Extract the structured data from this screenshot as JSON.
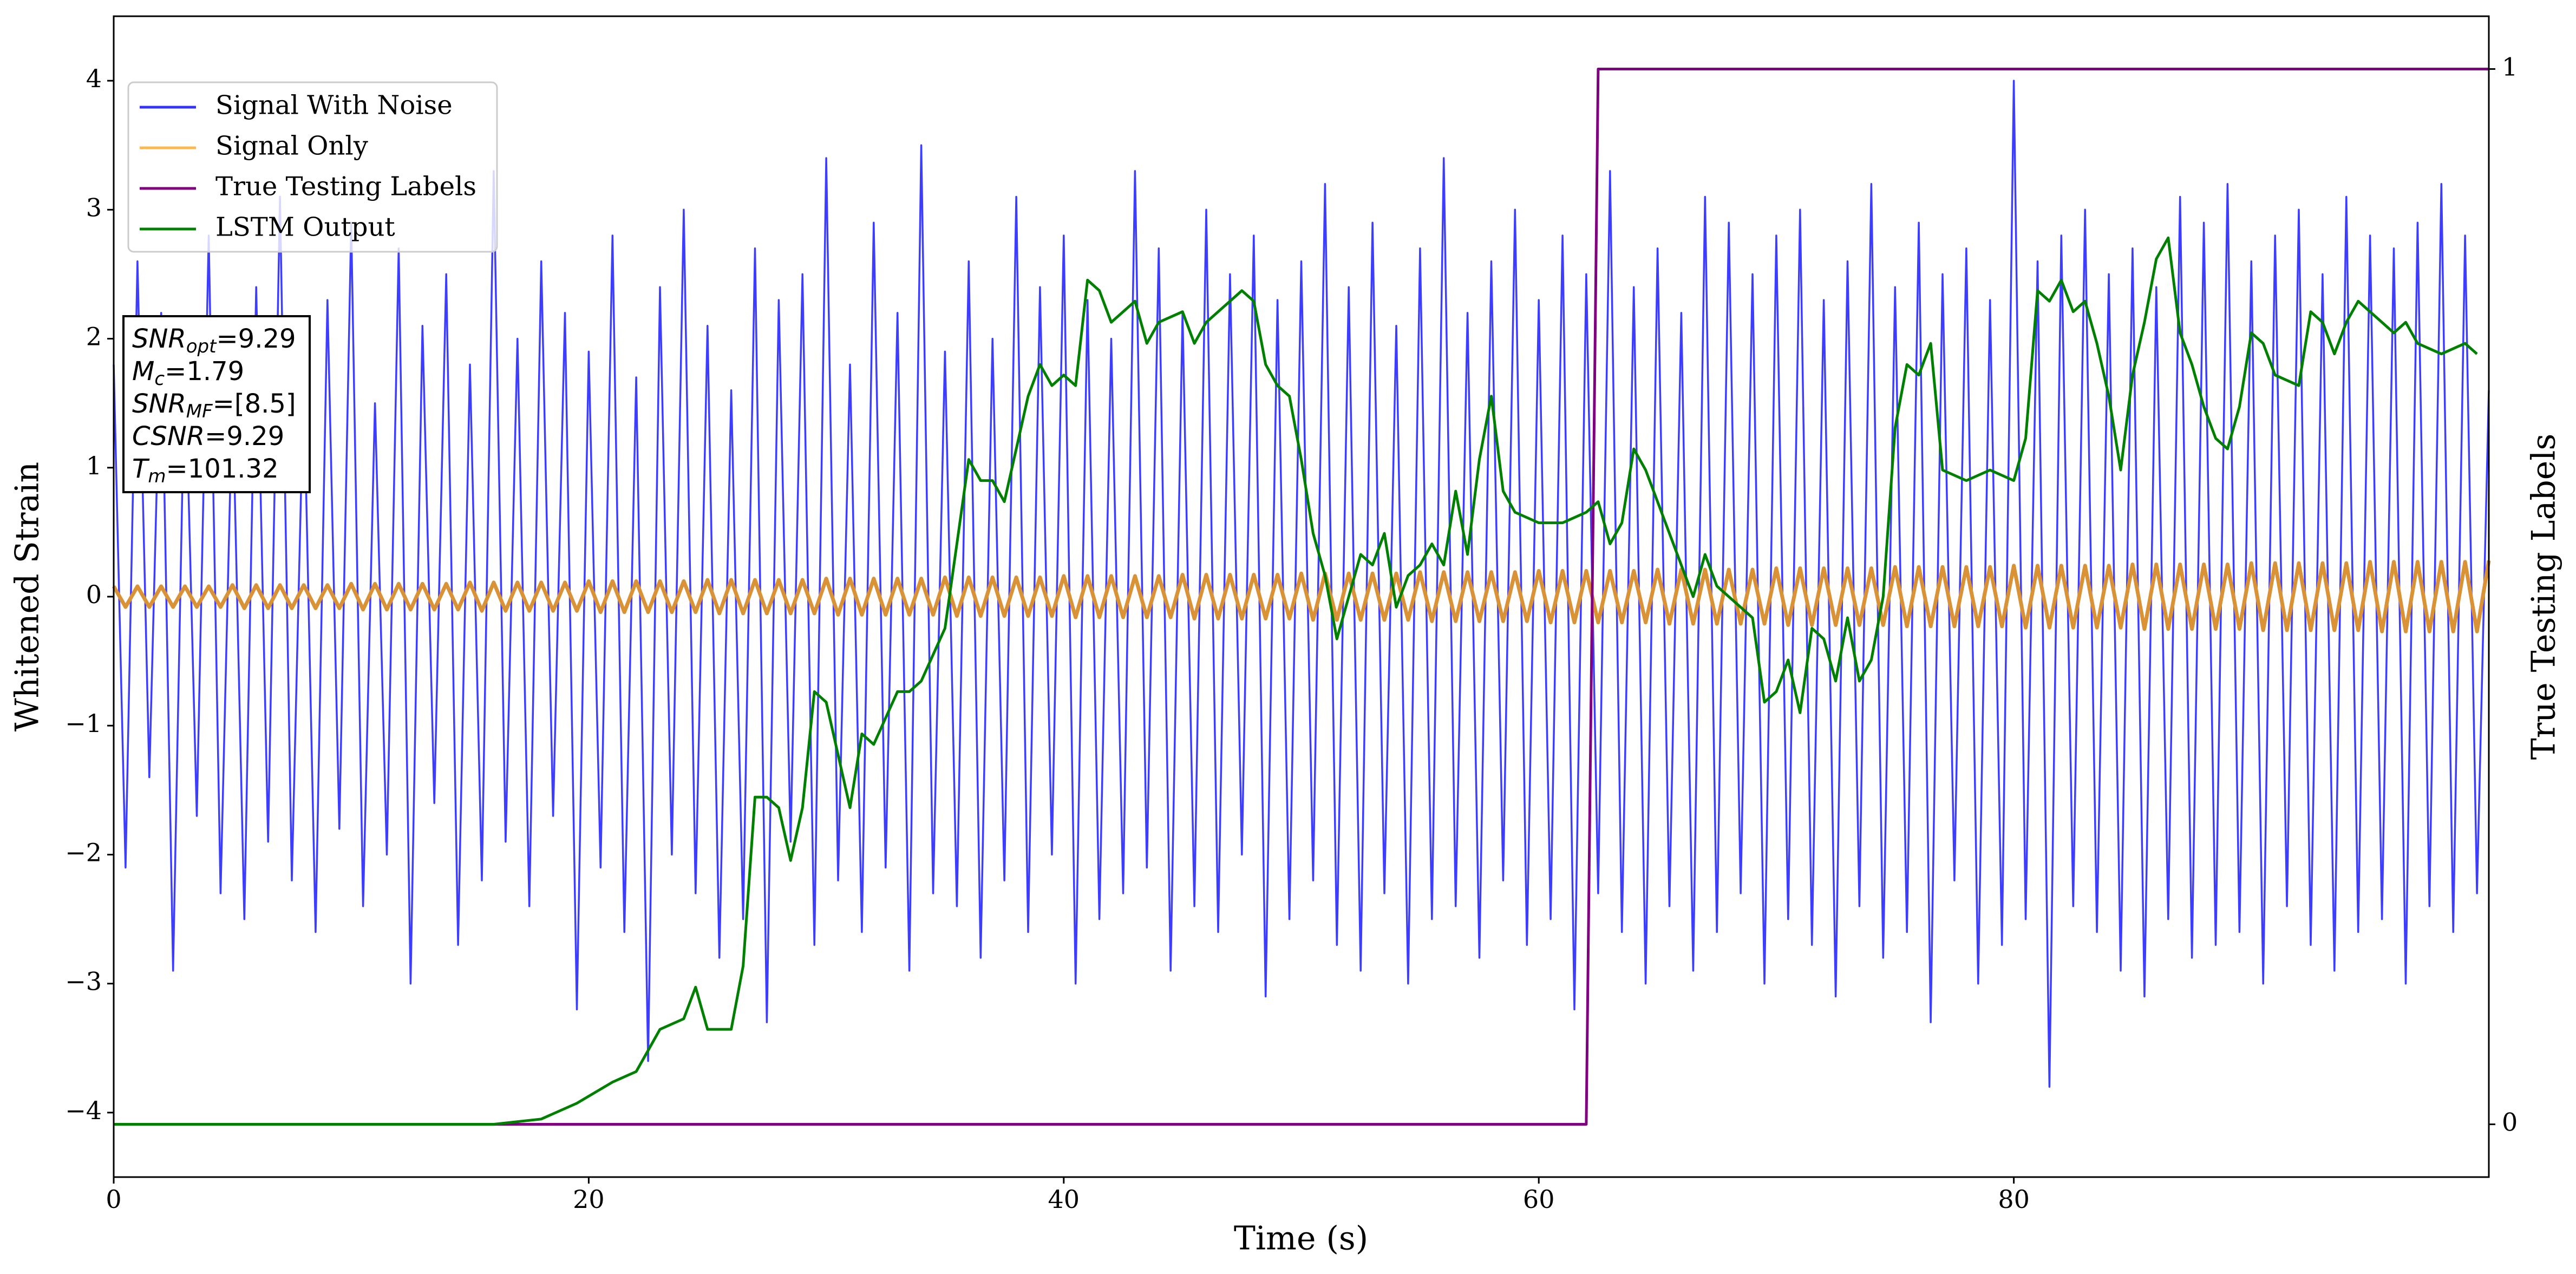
{
  "chart_data": {
    "type": "line",
    "xlabel": "Time (s)",
    "ylabel": "Whitened Strain",
    "y2label": "True Testing Labels",
    "xlim": [
      0,
      100
    ],
    "ylim": [
      -4.5,
      4.5
    ],
    "y2lim": [
      -0.05,
      1.05
    ],
    "xticks": [
      0,
      20,
      40,
      60,
      80
    ],
    "yticks": [
      {
        "value": -4,
        "label": "−4"
      },
      {
        "value": -3,
        "label": "−3"
      },
      {
        "value": -2,
        "label": "−2"
      },
      {
        "value": -1,
        "label": "−1"
      },
      0,
      1,
      2,
      3,
      4
    ],
    "y2ticks": [
      0,
      1
    ],
    "legend": "upper left",
    "annotation": [
      {
        "base": "SNR",
        "sub": "opt",
        "rest": "=9.29"
      },
      {
        "base": "M",
        "sub": "c",
        "rest": "=1.79"
      },
      {
        "base": "SNR",
        "sub": "MF",
        "rest": "=[8.5]"
      },
      {
        "base": "CSNR",
        "rest": "=9.29"
      },
      {
        "base": "T",
        "sub": "m",
        "rest": "=101.32"
      }
    ],
    "x": [
      0,
      0.5,
      1,
      1.5,
      2,
      2.5,
      3,
      3.5,
      4,
      4.5,
      5,
      5.5,
      6,
      6.5,
      7,
      7.5,
      8,
      8.5,
      9,
      9.5,
      10,
      10.5,
      11,
      11.5,
      12,
      12.5,
      13,
      13.5,
      14,
      14.5,
      15,
      15.5,
      16,
      16.5,
      17,
      17.5,
      18,
      18.5,
      19,
      19.5,
      20,
      20.5,
      21,
      21.5,
      22,
      22.5,
      23,
      23.5,
      24,
      24.5,
      25,
      25.5,
      26,
      26.5,
      27,
      27.5,
      28,
      28.5,
      29,
      29.5,
      30,
      30.5,
      31,
      31.5,
      32,
      32.5,
      33,
      33.5,
      34,
      34.5,
      35,
      35.5,
      36,
      36.5,
      37,
      37.5,
      38,
      38.5,
      39,
      39.5,
      40,
      40.5,
      41,
      41.5,
      42,
      42.5,
      43,
      43.5,
      44,
      44.5,
      45,
      45.5,
      46,
      46.5,
      47,
      47.5,
      48,
      48.5,
      49,
      49.5,
      50,
      50.5,
      51,
      51.5,
      52,
      52.5,
      53,
      53.5,
      54,
      54.5,
      55,
      55.5,
      56,
      56.5,
      57,
      57.5,
      58,
      58.5,
      59,
      59.5,
      60,
      60.5,
      61,
      61.5,
      62,
      62.5,
      63,
      63.5,
      64,
      64.5,
      65,
      65.5,
      66,
      66.5,
      67,
      67.5,
      68,
      68.5,
      69,
      69.5,
      70,
      70.5,
      71,
      71.5,
      72,
      72.5,
      73,
      73.5,
      74,
      74.5,
      75,
      75.5,
      76,
      76.5,
      77,
      77.5,
      78,
      78.5,
      79,
      79.5,
      80,
      80.5,
      81,
      81.5,
      82,
      82.5,
      83,
      83.5,
      84,
      84.5,
      85,
      85.5,
      86,
      86.5,
      87,
      87.5,
      88,
      88.5,
      89,
      89.5,
      90,
      90.5,
      91,
      91.5,
      92,
      92.5,
      93,
      93.5,
      94,
      94.5,
      95,
      95.5,
      96,
      96.5,
      97,
      97.5,
      98,
      98.5,
      99,
      99.5,
      100
    ],
    "series": [
      {
        "name": "Signal With Noise",
        "color": "#3333ff",
        "axis": "y",
        "values": [
          1.8,
          -2.1,
          2.6,
          -1.4,
          2.2,
          -2.9,
          1.9,
          -1.7,
          2.8,
          -2.3,
          1.6,
          -2.5,
          2.4,
          -1.9,
          3.1,
          -2.2,
          1.7,
          -2.6,
          2.3,
          -1.8,
          2.9,
          -2.4,
          1.5,
          -2.0,
          2.7,
          -3.0,
          2.1,
          -1.6,
          2.5,
          -2.7,
          1.8,
          -2.2,
          3.3,
          -1.9,
          2.0,
          -2.4,
          2.6,
          -1.7,
          2.2,
          -3.2,
          1.9,
          -2.1,
          2.8,
          -2.6,
          1.7,
          -3.6,
          2.4,
          -2.0,
          3.0,
          -2.3,
          2.1,
          -2.8,
          1.6,
          -2.5,
          2.7,
          -3.3,
          2.3,
          -1.9,
          2.5,
          -2.7,
          3.4,
          -2.2,
          1.8,
          -2.6,
          2.9,
          -2.1,
          2.2,
          -2.9,
          3.5,
          -2.3,
          1.9,
          -2.4,
          2.6,
          -2.8,
          2.0,
          -2.2,
          3.1,
          -2.6,
          2.4,
          -2.0,
          2.8,
          -3.0,
          2.3,
          -2.5,
          2.0,
          -2.3,
          3.3,
          -2.1,
          2.7,
          -2.9,
          2.2,
          -2.4,
          3.0,
          -2.6,
          2.5,
          -2.0,
          2.8,
          -3.1,
          2.3,
          -2.5,
          2.6,
          -2.2,
          3.2,
          -2.7,
          2.4,
          -2.9,
          2.9,
          -2.3,
          2.1,
          -3.0,
          2.7,
          -2.5,
          3.4,
          -2.4,
          2.2,
          -2.8,
          2.6,
          -2.2,
          3.0,
          -2.7,
          2.3,
          -2.5,
          2.8,
          -3.2,
          2.5,
          -2.3,
          3.3,
          -2.6,
          2.4,
          -3.0,
          2.7,
          -2.4,
          2.2,
          -2.9,
          3.1,
          -2.6,
          2.9,
          -2.3,
          2.5,
          -3.0,
          2.8,
          -2.5,
          3.0,
          -2.7,
          2.3,
          -3.1,
          2.6,
          -2.4,
          3.2,
          -2.8,
          2.4,
          -2.6,
          2.9,
          -3.3,
          2.5,
          -2.2,
          2.7,
          -3.0,
          2.3,
          -2.7,
          4.0,
          -2.5,
          2.6,
          -3.8,
          2.8,
          -2.4,
          3.0,
          -2.6,
          2.5,
          -2.9,
          2.7,
          -3.1,
          2.4,
          -2.5,
          3.1,
          -2.8,
          2.9,
          -2.7,
          3.2,
          -2.6,
          2.6,
          -3.0,
          2.8,
          -2.4,
          3.0,
          -2.7,
          2.5,
          -2.9,
          3.1,
          -2.6,
          2.8,
          -2.5,
          2.7,
          -3.0,
          2.9,
          -2.4,
          3.2,
          -2.6,
          2.8,
          -2.3,
          1.6
        ]
      },
      {
        "name": "Signal Only",
        "color": "#d99236",
        "legend_color": "#ffb84d",
        "axis": "y",
        "values": [
          0.08,
          -0.08,
          0.08,
          -0.08,
          0.08,
          -0.08,
          0.08,
          -0.08,
          0.08,
          -0.08,
          0.09,
          -0.09,
          0.09,
          -0.09,
          0.09,
          -0.09,
          0.09,
          -0.09,
          0.09,
          -0.09,
          0.1,
          -0.1,
          0.1,
          -0.1,
          0.1,
          -0.1,
          0.1,
          -0.1,
          0.1,
          -0.1,
          0.11,
          -0.11,
          0.11,
          -0.11,
          0.11,
          -0.11,
          0.11,
          -0.11,
          0.11,
          -0.11,
          0.12,
          -0.12,
          0.12,
          -0.12,
          0.12,
          -0.12,
          0.12,
          -0.12,
          0.12,
          -0.12,
          0.13,
          -0.13,
          0.13,
          -0.13,
          0.13,
          -0.13,
          0.13,
          -0.13,
          0.13,
          -0.13,
          0.14,
          -0.14,
          0.14,
          -0.14,
          0.14,
          -0.14,
          0.14,
          -0.14,
          0.14,
          -0.14,
          0.15,
          -0.15,
          0.15,
          -0.15,
          0.15,
          -0.15,
          0.15,
          -0.15,
          0.15,
          -0.15,
          0.16,
          -0.16,
          0.16,
          -0.16,
          0.16,
          -0.16,
          0.16,
          -0.16,
          0.16,
          -0.16,
          0.17,
          -0.17,
          0.17,
          -0.17,
          0.17,
          -0.17,
          0.17,
          -0.17,
          0.17,
          -0.17,
          0.18,
          -0.18,
          0.18,
          -0.18,
          0.18,
          -0.18,
          0.18,
          -0.18,
          0.18,
          -0.18,
          0.19,
          -0.19,
          0.19,
          -0.19,
          0.19,
          -0.19,
          0.19,
          -0.19,
          0.19,
          -0.19,
          0.2,
          -0.2,
          0.2,
          -0.2,
          0.2,
          -0.2,
          0.2,
          -0.2,
          0.2,
          -0.2,
          0.21,
          -0.21,
          0.21,
          -0.21,
          0.21,
          -0.21,
          0.21,
          -0.21,
          0.21,
          -0.21,
          0.22,
          -0.22,
          0.22,
          -0.22,
          0.22,
          -0.22,
          0.22,
          -0.22,
          0.22,
          -0.22,
          0.23,
          -0.23,
          0.23,
          -0.23,
          0.23,
          -0.23,
          0.23,
          -0.23,
          0.23,
          -0.23,
          0.24,
          -0.24,
          0.24,
          -0.24,
          0.24,
          -0.24,
          0.24,
          -0.24,
          0.24,
          -0.24,
          0.25,
          -0.25,
          0.25,
          -0.25,
          0.25,
          -0.25,
          0.25,
          -0.25,
          0.25,
          -0.25,
          0.26,
          -0.26,
          0.26,
          -0.26,
          0.26,
          -0.26,
          0.26,
          -0.26,
          0.26,
          -0.26,
          0.27,
          -0.27,
          0.27,
          -0.27,
          0.27,
          -0.27,
          0.27,
          -0.27,
          0.27,
          -0.27,
          0.28
        ]
      },
      {
        "name": "True Testing Labels",
        "color": "#800080",
        "axis": "y2",
        "x": [
          0,
          62,
          62.5,
          100
        ],
        "values": [
          0,
          0,
          1,
          1
        ]
      },
      {
        "name": "LSTM Output",
        "color": "#008000",
        "axis": "y2",
        "x": [
          0,
          16,
          18,
          19.5,
          21,
          22,
          22.5,
          23,
          24,
          24.5,
          25,
          25.5,
          26,
          26.5,
          27,
          27.5,
          28,
          28.5,
          29,
          29.5,
          30,
          31,
          31.5,
          32,
          33,
          33.5,
          34,
          35,
          35.5,
          36,
          36.5,
          37,
          37.5,
          38,
          38.5,
          39,
          39.5,
          40,
          40.5,
          41,
          41.5,
          42,
          42.5,
          43,
          43.5,
          44,
          45,
          45.5,
          46,
          47,
          47.5,
          48,
          48.5,
          49,
          49.5,
          50,
          50.5,
          51,
          51.5,
          52,
          52.5,
          53,
          53.5,
          54,
          54.5,
          55,
          55.5,
          56,
          56.5,
          57,
          57.5,
          58,
          58.5,
          59,
          60,
          61,
          62,
          62.5,
          63,
          63.5,
          64,
          64.5,
          65,
          66,
          66.5,
          67,
          67.5,
          68,
          69,
          69.5,
          70,
          70.5,
          71,
          71.5,
          72,
          72.5,
          73,
          73.5,
          74,
          74.5,
          75,
          75.5,
          76,
          76.5,
          77,
          78,
          79,
          80,
          80.5,
          81,
          81.5,
          82,
          82.5,
          83,
          83.5,
          84,
          84.5,
          85,
          85.5,
          86,
          86.5,
          87,
          87.5,
          88,
          88.5,
          89,
          89.5,
          90,
          90.5,
          91,
          92,
          92.5,
          93,
          93.5,
          94,
          94.5,
          95,
          95.5,
          96,
          96.5,
          97,
          98,
          99,
          99.5
        ],
        "values": [
          0,
          0,
          0.005,
          0.02,
          0.04,
          0.05,
          0.07,
          0.09,
          0.1,
          0.13,
          0.09,
          0.09,
          0.09,
          0.15,
          0.31,
          0.31,
          0.3,
          0.25,
          0.3,
          0.41,
          0.4,
          0.3,
          0.37,
          0.36,
          0.41,
          0.41,
          0.42,
          0.47,
          0.55,
          0.63,
          0.61,
          0.61,
          0.59,
          0.64,
          0.69,
          0.72,
          0.7,
          0.71,
          0.7,
          0.8,
          0.79,
          0.76,
          0.77,
          0.78,
          0.74,
          0.76,
          0.77,
          0.74,
          0.76,
          0.78,
          0.79,
          0.78,
          0.72,
          0.7,
          0.69,
          0.63,
          0.56,
          0.52,
          0.46,
          0.5,
          0.54,
          0.53,
          0.56,
          0.49,
          0.52,
          0.53,
          0.55,
          0.53,
          0.6,
          0.54,
          0.63,
          0.69,
          0.6,
          0.58,
          0.57,
          0.57,
          0.58,
          0.59,
          0.55,
          0.57,
          0.64,
          0.62,
          0.59,
          0.53,
          0.5,
          0.54,
          0.51,
          0.5,
          0.48,
          0.4,
          0.41,
          0.44,
          0.39,
          0.47,
          0.46,
          0.42,
          0.48,
          0.42,
          0.44,
          0.5,
          0.66,
          0.72,
          0.71,
          0.74,
          0.62,
          0.61,
          0.62,
          0.61,
          0.65,
          0.79,
          0.78,
          0.8,
          0.77,
          0.78,
          0.74,
          0.69,
          0.62,
          0.71,
          0.76,
          0.82,
          0.84,
          0.75,
          0.72,
          0.68,
          0.65,
          0.64,
          0.68,
          0.75,
          0.74,
          0.71,
          0.7,
          0.77,
          0.76,
          0.73,
          0.76,
          0.78,
          0.77,
          0.76,
          0.75,
          0.76,
          0.74,
          0.73,
          0.74,
          0.73
        ]
      }
    ]
  }
}
